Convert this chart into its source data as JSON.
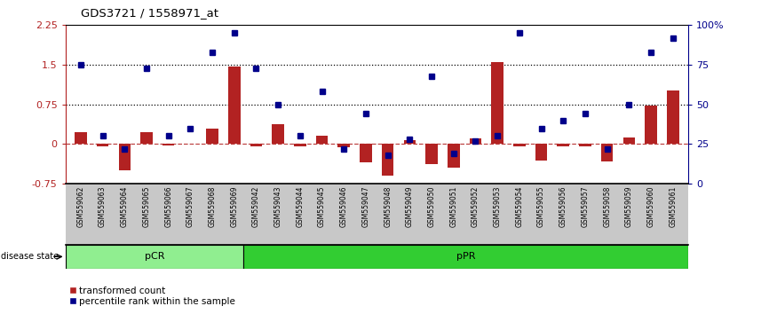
{
  "title": "GDS3721 / 1558971_at",
  "samples": [
    "GSM559062",
    "GSM559063",
    "GSM559064",
    "GSM559065",
    "GSM559066",
    "GSM559067",
    "GSM559068",
    "GSM559069",
    "GSM559042",
    "GSM559043",
    "GSM559044",
    "GSM559045",
    "GSM559046",
    "GSM559047",
    "GSM559048",
    "GSM559049",
    "GSM559050",
    "GSM559051",
    "GSM559052",
    "GSM559053",
    "GSM559054",
    "GSM559055",
    "GSM559056",
    "GSM559057",
    "GSM559058",
    "GSM559059",
    "GSM559060",
    "GSM559061"
  ],
  "transformed_count": [
    0.22,
    -0.05,
    -0.5,
    0.22,
    -0.02,
    0.0,
    0.3,
    1.47,
    -0.04,
    0.38,
    -0.05,
    0.15,
    -0.06,
    -0.35,
    -0.6,
    0.07,
    -0.38,
    -0.45,
    0.1,
    1.55,
    -0.05,
    -0.32,
    -0.05,
    -0.05,
    -0.33,
    0.12,
    0.73,
    1.02
  ],
  "percentile_rank": [
    75,
    30,
    22,
    73,
    30,
    35,
    83,
    95,
    73,
    50,
    30,
    58,
    22,
    44,
    18,
    28,
    68,
    19,
    27,
    30,
    95,
    35,
    40,
    44,
    22,
    50,
    83,
    92
  ],
  "pCR_count": 8,
  "bar_color": "#b22222",
  "dot_color": "#00008b",
  "hline_y1": 1.5,
  "hline_y2": 0.75,
  "ylim": [
    -0.75,
    2.25
  ],
  "right_ylim": [
    0,
    100
  ],
  "right_yticks": [
    0,
    25,
    50,
    75,
    100
  ],
  "right_yticklabels": [
    "0",
    "25",
    "50",
    "75",
    "100%"
  ],
  "left_yticks": [
    -0.75,
    0,
    0.75,
    1.5,
    2.25
  ],
  "left_yticklabels": [
    "-0.75",
    "0",
    "0.75",
    "1.5",
    "2.25"
  ],
  "pCR_color": "#90ee90",
  "pPR_color": "#32cd32",
  "xticklabel_bg": "#c8c8c8"
}
